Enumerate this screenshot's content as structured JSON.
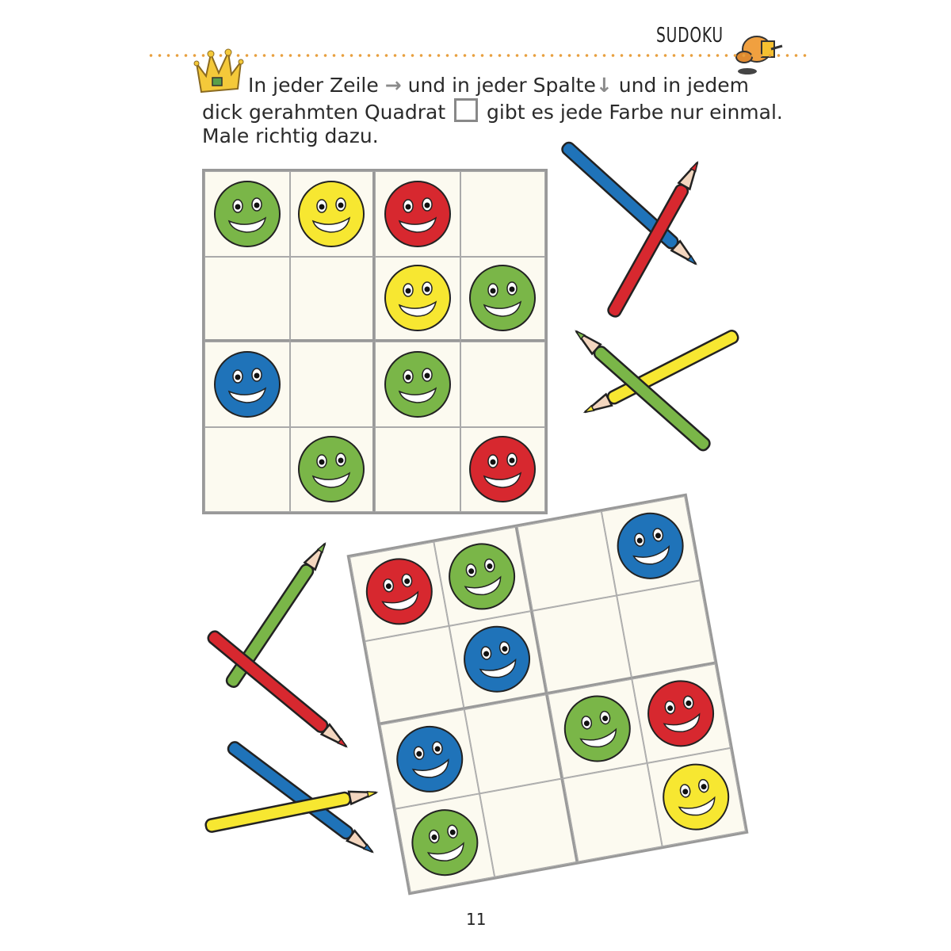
{
  "header": {
    "title": "SUDOKU",
    "mascot_icon": "dog-mascot-icon",
    "crown_icon": "crown-icon"
  },
  "instructions": {
    "line1_a": "In jeder Zeile",
    "line1_arrow_right": "→",
    "line1_b": "und in jeder Spalte",
    "line1_arrow_down": "↓",
    "line1_c": "und in jedem",
    "line2_a": "dick gerahmten Quadrat",
    "line2_b": "gibt es jede Farbe nur einmal.",
    "line3": "Male richtig dazu."
  },
  "colors": {
    "green": "#7ab648",
    "yellow": "#f7e731",
    "red": "#d7282f",
    "blue": "#1f73b9",
    "wood": "#f3d6bf"
  },
  "puzzles": [
    {
      "cells": [
        [
          "green",
          "yellow",
          "red",
          ""
        ],
        [
          "",
          "",
          "yellow",
          "green"
        ],
        [
          "blue",
          "",
          "green",
          ""
        ],
        [
          "",
          "green",
          "",
          "red"
        ]
      ]
    },
    {
      "cells": [
        [
          "red",
          "green",
          "",
          "blue"
        ],
        [
          "",
          "blue",
          "",
          ""
        ],
        [
          "blue",
          "",
          "green",
          "red"
        ],
        [
          "green",
          "",
          "",
          "yellow"
        ]
      ]
    }
  ],
  "page_number": "11"
}
